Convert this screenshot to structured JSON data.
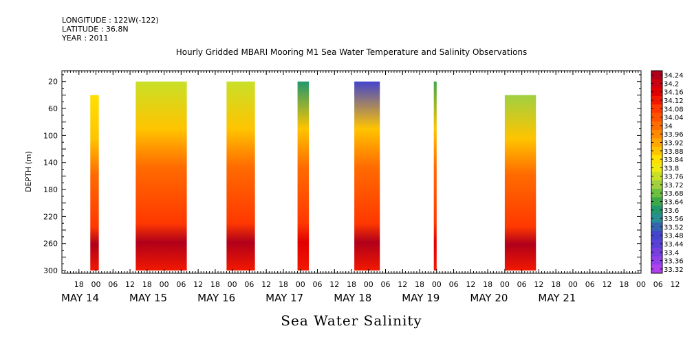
{
  "header": {
    "longitude": "LONGITUDE : 122W(-122)",
    "latitude": "LATITUDE : 36.8N",
    "year": "YEAR : 2011"
  },
  "chart_data": {
    "type": "heatmap",
    "title": "Hourly Gridded MBARI Mooring M1 Sea Water Temperature and Salinity Observations",
    "bottom_title": "Sea Water Salinity",
    "ylabel": "DEPTH (m)",
    "y_ticks": [
      20,
      60,
      100,
      140,
      180,
      220,
      260,
      300
    ],
    "ylim": [
      4,
      304
    ],
    "y_reversed": true,
    "x_hours_range": [
      -12,
      192
    ],
    "x_hour_ticks": [
      "18",
      "00",
      "06",
      "12",
      "18",
      "00",
      "06",
      "12",
      "18",
      "00",
      "06",
      "12",
      "18",
      "00",
      "06",
      "12",
      "18",
      "00",
      "06",
      "12",
      "18",
      "00",
      "06",
      "12",
      "18",
      "00",
      "06",
      "12",
      "18",
      "00",
      "06",
      "12",
      "18",
      "00",
      "06",
      "12"
    ],
    "x_date_labels": [
      {
        "label": "MAY 14",
        "hour": 0
      },
      {
        "label": "MAY 15",
        "hour": 24
      },
      {
        "label": "MAY 16",
        "hour": 48
      },
      {
        "label": "MAY 17",
        "hour": 72
      },
      {
        "label": "MAY 18",
        "hour": 96
      },
      {
        "label": "MAY 19",
        "hour": 120
      },
      {
        "label": "MAY 20",
        "hour": 144
      },
      {
        "label": "MAY 21",
        "hour": 168
      }
    ],
    "colorbar_levels": [
      "34.24",
      "34.2",
      "34.16",
      "34.12",
      "34.08",
      "34.04",
      "34",
      "33.96",
      "33.92",
      "33.88",
      "33.84",
      "33.8",
      "33.76",
      "33.72",
      "33.68",
      "33.64",
      "33.6",
      "33.56",
      "33.52",
      "33.48",
      "33.44",
      "33.4",
      "33.36",
      "33.32"
    ],
    "colorbar_colors": [
      "#b0001a",
      "#cc0010",
      "#e00000",
      "#f21800",
      "#ff3800",
      "#ff5200",
      "#ff6c00",
      "#ff8a00",
      "#ffa600",
      "#ffc400",
      "#ffe000",
      "#f0ea10",
      "#c8e028",
      "#a0d040",
      "#6cc040",
      "#3ca848",
      "#20986c",
      "#288e94",
      "#3464b0",
      "#4444cc",
      "#5a40d6",
      "#7640de",
      "#9040e8",
      "#b040f0"
    ],
    "blocks": [
      {
        "start_hour": -2,
        "end_hour": 1,
        "top_depth": 40,
        "bottom_depth": 300,
        "surface": "#ffe000",
        "deep": "#b0001a"
      },
      {
        "start_hour": 14,
        "end_hour": 32,
        "top_depth": 20,
        "bottom_depth": 300,
        "surface": "#c8e028",
        "deep": "#b0001a"
      },
      {
        "start_hour": 46,
        "end_hour": 56,
        "top_depth": 20,
        "bottom_depth": 300,
        "surface": "#c8e028",
        "deep": "#b0001a"
      },
      {
        "start_hour": 71,
        "end_hour": 75,
        "top_depth": 20,
        "bottom_depth": 300,
        "surface": "#20986c",
        "deep": "#e00000"
      },
      {
        "start_hour": 91,
        "end_hour": 100,
        "top_depth": 20,
        "bottom_depth": 300,
        "surface": "#4444cc",
        "deep": "#b0001a"
      },
      {
        "start_hour": 119,
        "end_hour": 120,
        "top_depth": 20,
        "bottom_depth": 300,
        "surface": "#3ca848",
        "deep": "#e00000"
      },
      {
        "start_hour": 144,
        "end_hour": 155,
        "top_depth": 40,
        "bottom_depth": 300,
        "surface": "#a0d040",
        "deep": "#b0001a"
      }
    ]
  }
}
